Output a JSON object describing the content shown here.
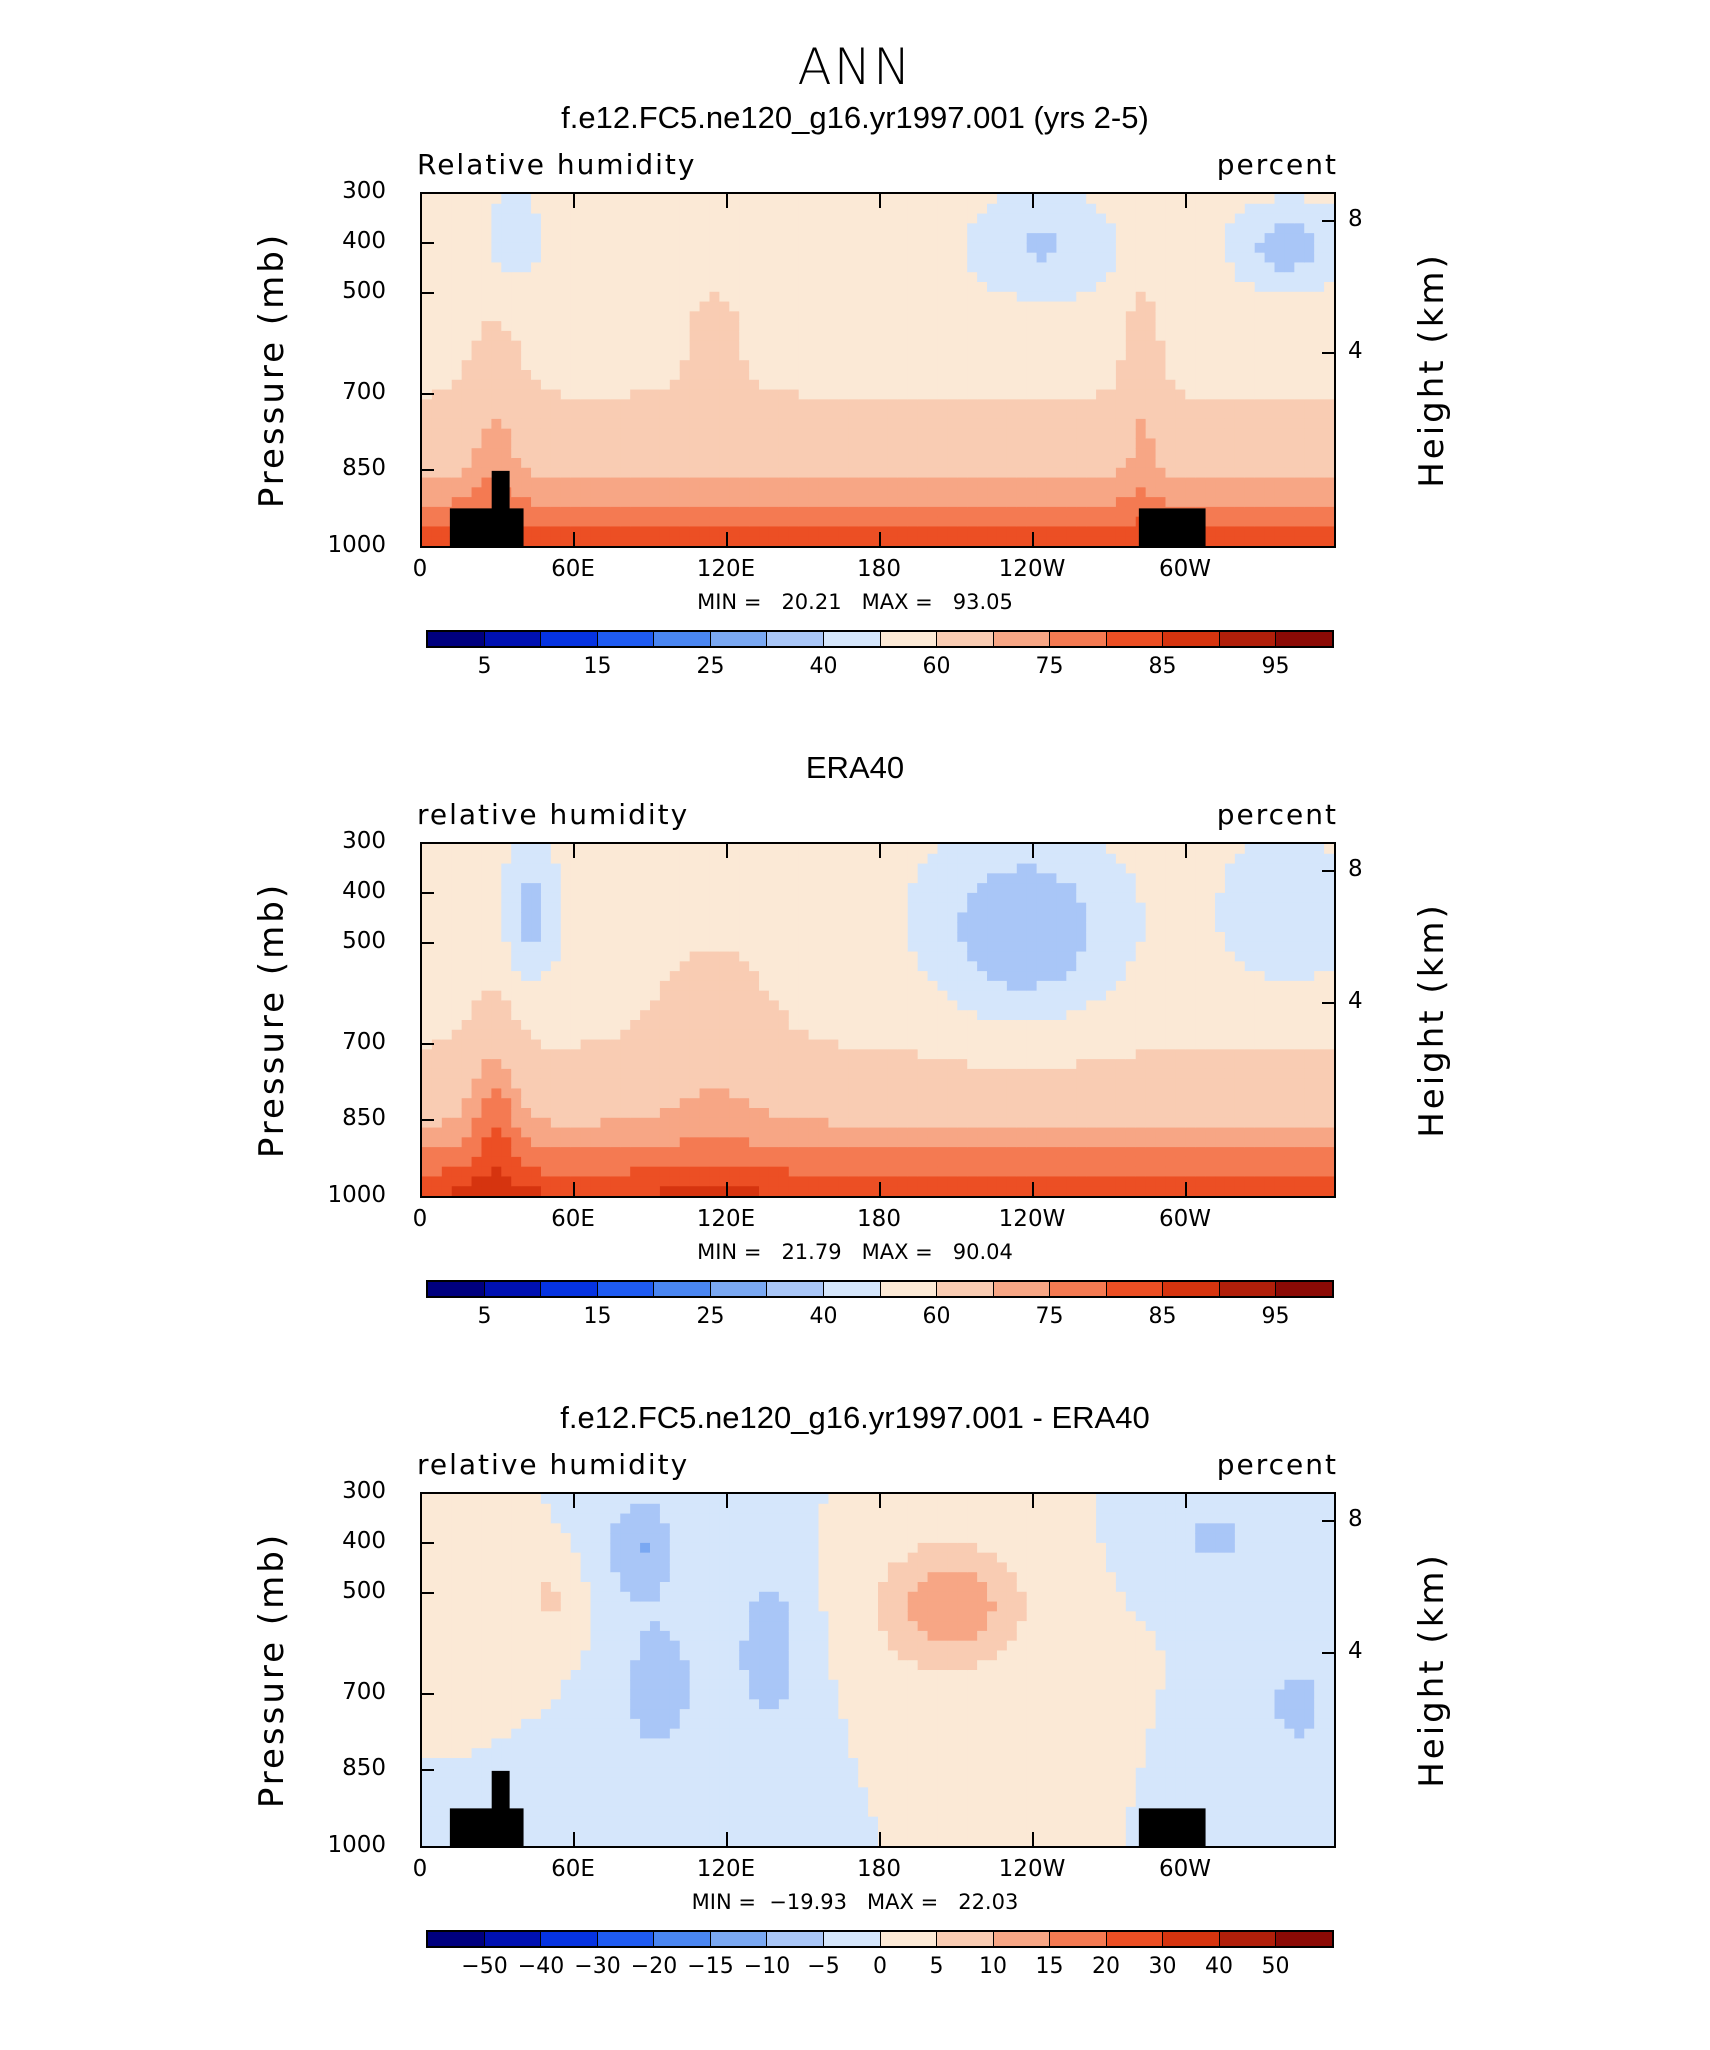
{
  "main_title": "ANN",
  "chart_data": [
    {
      "type": "heatmap",
      "title": "f.e12.FC5.ne120_g16.yr1997.001 (yrs 2-5)",
      "left_label": "Relative humidity",
      "right_label": "percent",
      "ylabel": "Pressure (mb)",
      "y2label": "Height (km)",
      "ylim": [
        1000,
        300
      ],
      "yticks": [
        "300",
        "400",
        "500",
        "700",
        "850",
        "1000"
      ],
      "y2ticks": [
        "8",
        "4"
      ],
      "xticks": [
        "0",
        "60E",
        "120E",
        "180",
        "120W",
        "60W"
      ],
      "stats": "MIN =   20.21   MAX =   93.05",
      "colorbar_labels": [
        "5",
        "15",
        "25",
        "40",
        "60",
        "75",
        "85",
        "95"
      ],
      "min": 20.21,
      "max": 93.05
    },
    {
      "type": "heatmap",
      "title": "ERA40",
      "left_label": "relative humidity",
      "right_label": "percent",
      "ylabel": "Pressure (mb)",
      "y2label": "Height (km)",
      "ylim": [
        1000,
        300
      ],
      "yticks": [
        "300",
        "400",
        "500",
        "700",
        "850",
        "1000"
      ],
      "y2ticks": [
        "8",
        "4"
      ],
      "xticks": [
        "0",
        "60E",
        "120E",
        "180",
        "120W",
        "60W"
      ],
      "stats": "MIN =   21.79   MAX =   90.04",
      "colorbar_labels": [
        "5",
        "15",
        "25",
        "40",
        "60",
        "75",
        "85",
        "95"
      ],
      "min": 21.79,
      "max": 90.04
    },
    {
      "type": "heatmap",
      "title": "f.e12.FC5.ne120_g16.yr1997.001 - ERA40",
      "left_label": "relative humidity",
      "right_label": "percent",
      "ylabel": "Pressure (mb)",
      "y2label": "Height (km)",
      "ylim": [
        1000,
        300
      ],
      "yticks": [
        "300",
        "400",
        "500",
        "700",
        "850",
        "1000"
      ],
      "y2ticks": [
        "8",
        "4"
      ],
      "xticks": [
        "0",
        "60E",
        "120E",
        "180",
        "120W",
        "60W"
      ],
      "stats": "MIN =  −19.93   MAX =   22.03",
      "colorbar_labels": [
        "−50",
        "−40",
        "−30",
        "−20",
        "−15",
        "−10",
        "−5",
        "0",
        "5",
        "10",
        "15",
        "20",
        "30",
        "40",
        "50"
      ],
      "min": -19.93,
      "max": 22.03
    }
  ],
  "colormap": [
    "#00007f",
    "#0011b3",
    "#0633e0",
    "#1f5bf2",
    "#4a86f2",
    "#7aa8f2",
    "#a9c6f7",
    "#d5e6fb",
    "#fbe9d6",
    "#f9ccb3",
    "#f7a685",
    "#f47a52",
    "#ec4f24",
    "#d6340f",
    "#b11f0a",
    "#8b0a05"
  ]
}
